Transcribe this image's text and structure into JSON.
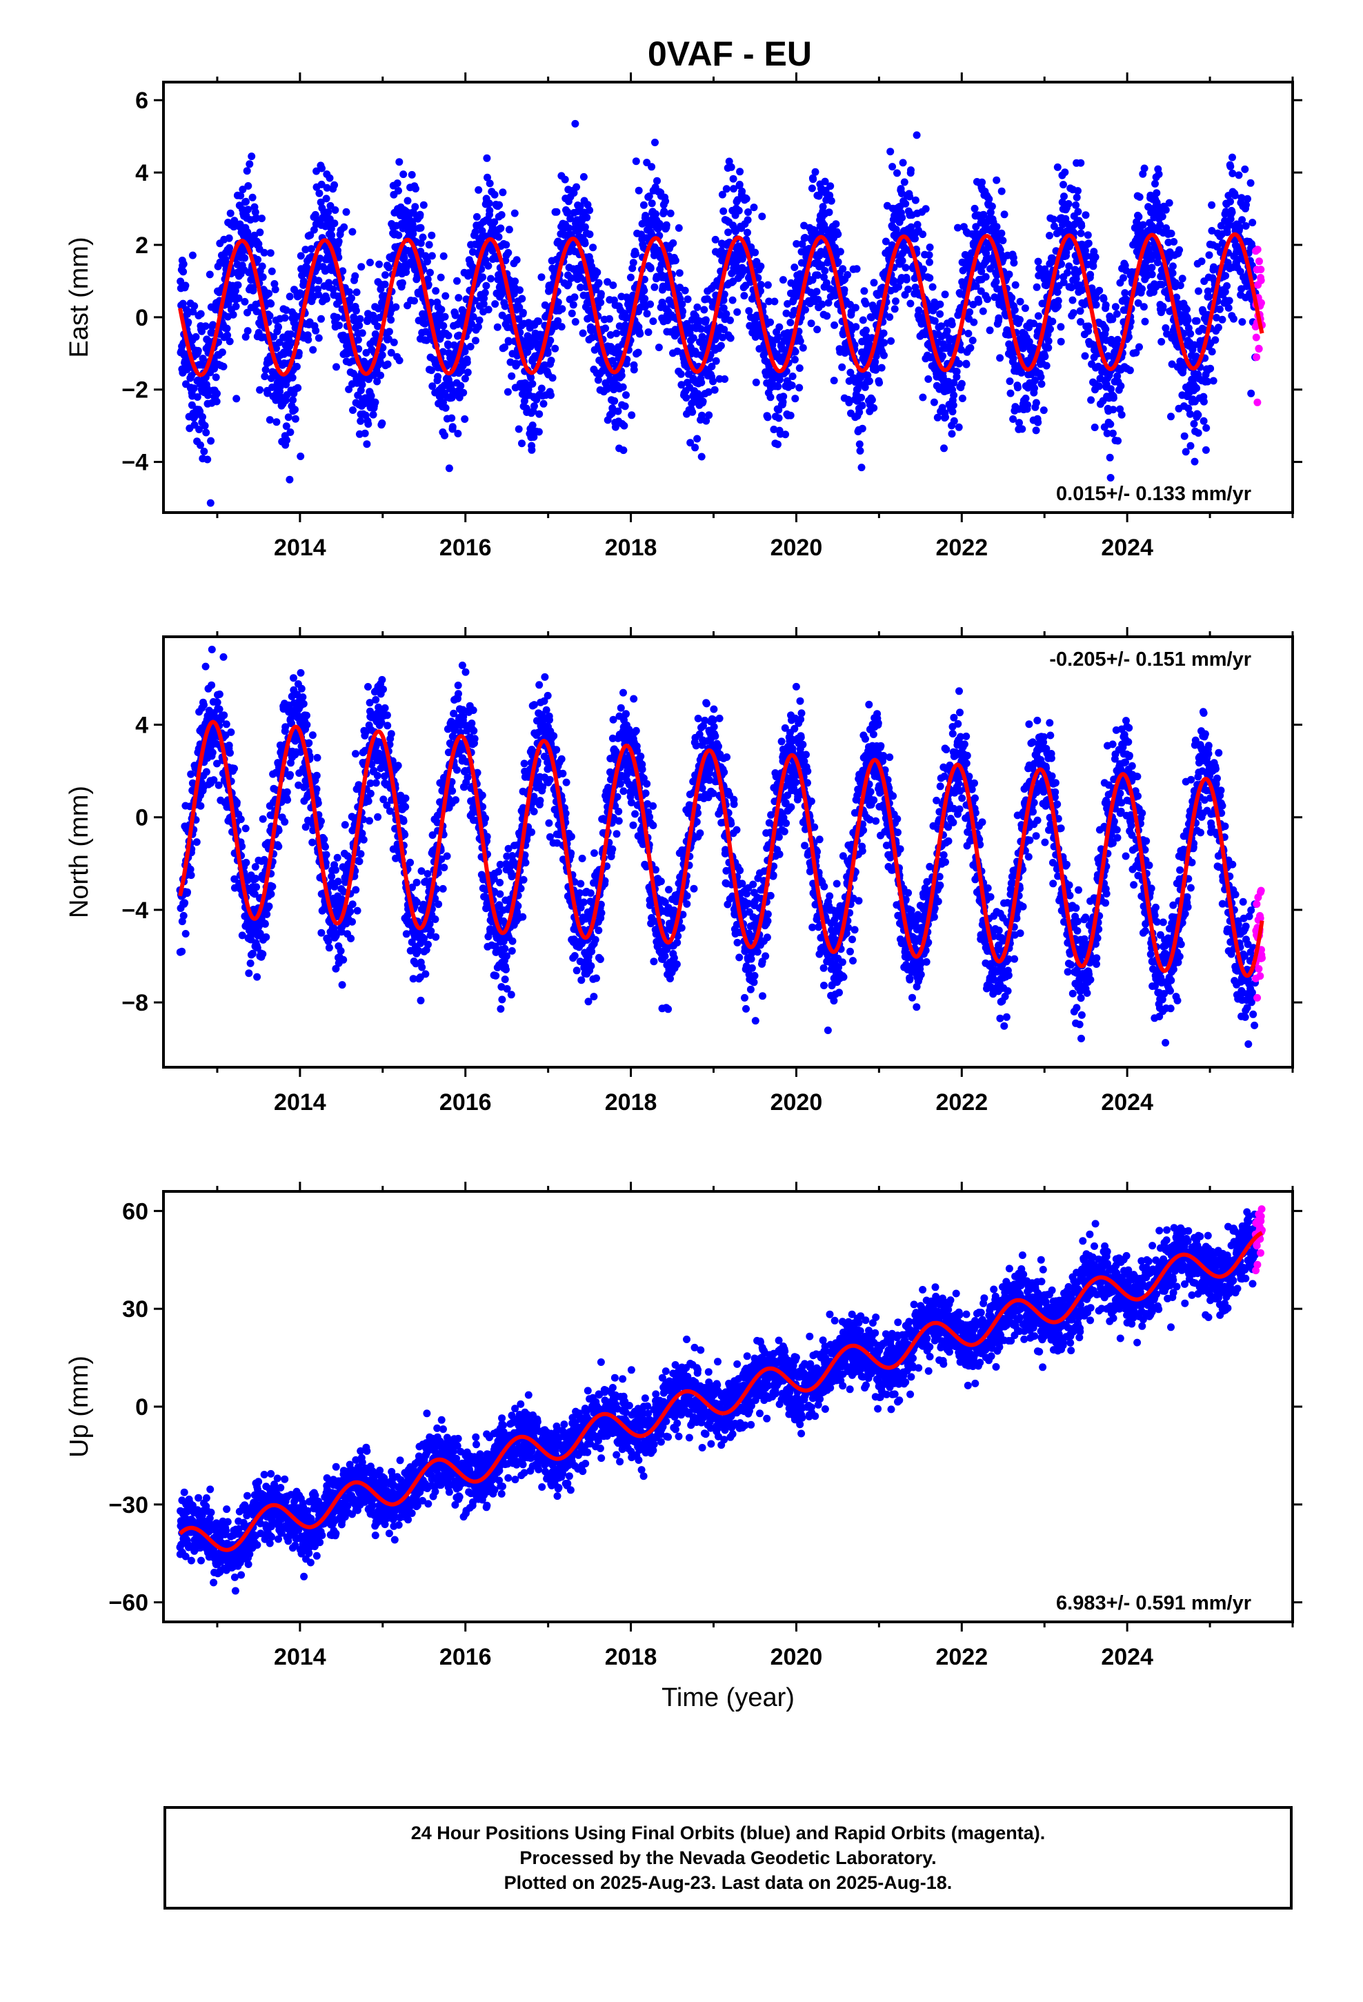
{
  "title": "0VAF - EU",
  "colors": {
    "final_orbits": "#0000ff",
    "rapid_orbits": "#ff00ff",
    "model_fit": "#ff0000",
    "frame": "#000000"
  },
  "chart_data": [
    {
      "type": "scatter",
      "panel": "east",
      "ylabel": "East (mm)",
      "xlim": [
        2012.35,
        2026.0
      ],
      "ylim": [
        -5.4,
        6.5
      ],
      "yticks": [
        -4,
        -2,
        0,
        2,
        4,
        6
      ],
      "ytick_labels": [
        "−4",
        "−2",
        "0",
        "2",
        "4",
        "6"
      ],
      "xticks": [
        2014,
        2016,
        2018,
        2020,
        2022,
        2024
      ],
      "xtick_labels": [
        "2014",
        "2016",
        "2018",
        "2020",
        "2022",
        "2024"
      ],
      "rate_label": "0.015+/- 0.133 mm/yr",
      "rate_label_position": "bottom-right",
      "data_start": 2012.55,
      "data_end": 2025.63,
      "rapid_start": 2025.55,
      "model": {
        "offset": 0.25,
        "trend": 0.015,
        "annual_amp": 1.85,
        "annual_phase": 2013.3,
        "semiannual_amp": 0.0
      },
      "scatter_sd": 1.0,
      "series": [
        {
          "name": "Final Orbits",
          "role": "observations",
          "color": "#0000ff"
        },
        {
          "name": "Rapid Orbits",
          "role": "observations",
          "color": "#ff00ff"
        },
        {
          "role": "model fit",
          "color": "#ff0000"
        }
      ]
    },
    {
      "type": "scatter",
      "panel": "north",
      "ylabel": "North (mm)",
      "xlim": [
        2012.35,
        2026.0
      ],
      "ylim": [
        -10.8,
        7.8
      ],
      "yticks": [
        -8,
        -4,
        0,
        4
      ],
      "ytick_labels": [
        "−8",
        "−4",
        "0",
        "4"
      ],
      "xticks": [
        2014,
        2016,
        2018,
        2020,
        2022,
        2024
      ],
      "xtick_labels": [
        "2014",
        "2016",
        "2018",
        "2020",
        "2022",
        "2024"
      ],
      "rate_label": "-0.205+/- 0.151 mm/yr",
      "rate_label_position": "top-right",
      "data_start": 2012.55,
      "data_end": 2025.63,
      "rapid_start": 2025.55,
      "model": {
        "offset": 0.0,
        "trend": -0.205,
        "annual_amp": 4.2,
        "annual_phase": 2012.95,
        "semiannual_amp": 0.0
      },
      "scatter_sd": 1.2,
      "series": [
        {
          "name": "Final Orbits",
          "role": "observations",
          "color": "#0000ff"
        },
        {
          "name": "Rapid Orbits",
          "role": "observations",
          "color": "#ff00ff"
        },
        {
          "role": "model fit",
          "color": "#ff0000"
        }
      ]
    },
    {
      "type": "scatter",
      "panel": "up",
      "ylabel": "Up (mm)",
      "xlabel": "Time (year)",
      "xlim": [
        2012.35,
        2026.0
      ],
      "ylim": [
        -66,
        66
      ],
      "yticks": [
        -60,
        -30,
        0,
        30,
        60
      ],
      "ytick_labels": [
        "−60",
        "−30",
        "0",
        "30",
        "60"
      ],
      "xticks": [
        2014,
        2016,
        2018,
        2020,
        2022,
        2024
      ],
      "xtick_labels": [
        "2014",
        "2016",
        "2018",
        "2020",
        "2022",
        "2024"
      ],
      "rate_label": "6.983+/- 0.591 mm/yr",
      "rate_label_position": "bottom-right",
      "data_start": 2012.55,
      "data_end": 2025.63,
      "rapid_start": 2025.55,
      "model": {
        "offset": -43.0,
        "trend": 6.983,
        "annual_amp": 5.0,
        "annual_phase": 2012.65,
        "semiannual_amp": 0.0
      },
      "scatter_sd": 5.0,
      "series": [
        {
          "name": "Final Orbits",
          "role": "observations",
          "color": "#0000ff"
        },
        {
          "name": "Rapid Orbits",
          "role": "observations",
          "color": "#ff00ff"
        },
        {
          "role": "model fit",
          "color": "#ff0000"
        }
      ]
    }
  ],
  "footer": {
    "line1": "24 Hour Positions Using Final Orbits (blue) and Rapid Orbits (magenta).",
    "line2": "Processed by the Nevada Geodetic Laboratory.",
    "line3": "Plotted on 2025-Aug-23. Last data on 2025-Aug-18."
  }
}
